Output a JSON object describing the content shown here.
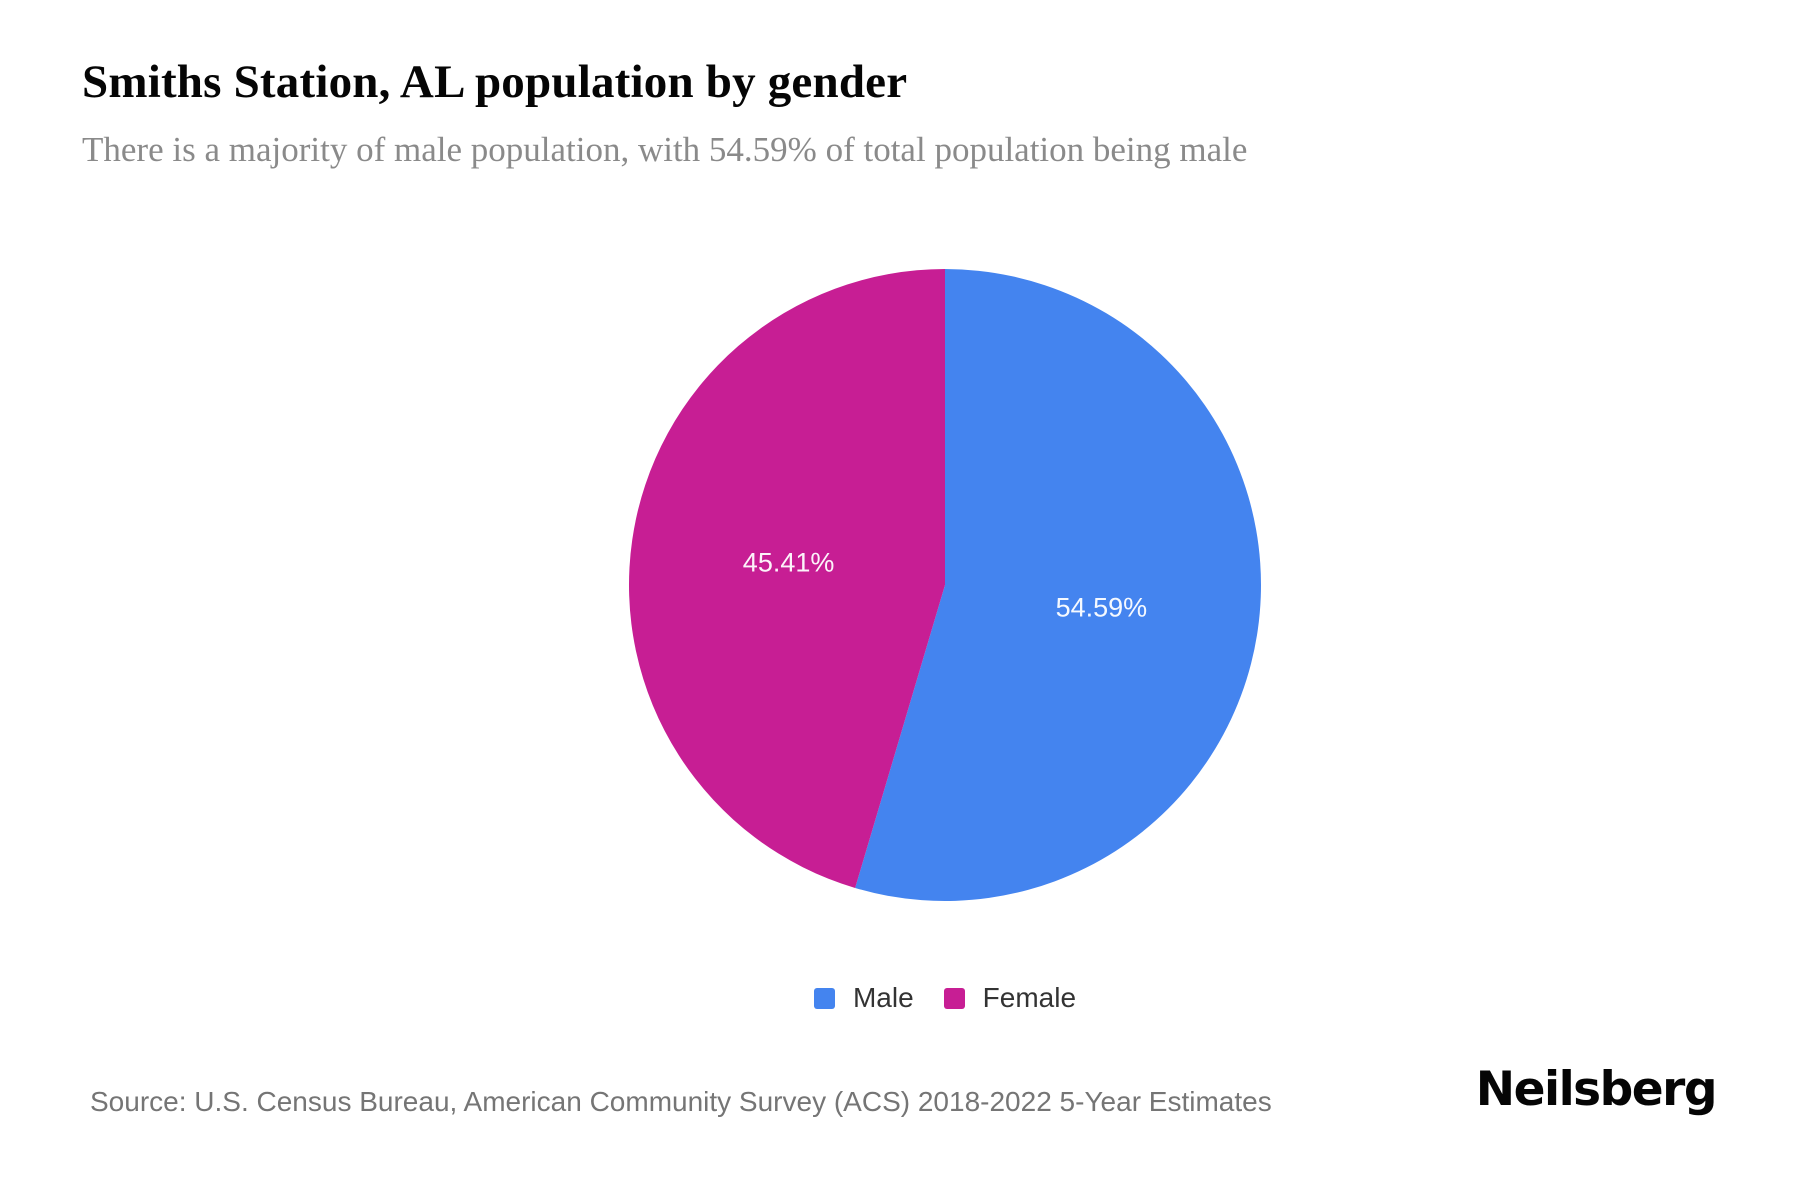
{
  "header": {
    "title": "Smiths Station, AL population by gender",
    "subtitle": "There is a majority of male population, with 54.59% of total population being male"
  },
  "chart_data": {
    "type": "pie",
    "title": "Smiths Station, AL population by gender",
    "subtitle": "There is a majority of male population, with 54.59% of total population being male",
    "slices": [
      {
        "label": "Male",
        "value": 54.59,
        "display": "54.59%",
        "color": "#4484EF"
      },
      {
        "label": "Female",
        "value": 45.41,
        "display": "45.41%",
        "color": "#C71E94"
      }
    ],
    "start_angle_deg": 0,
    "direction": "clockwise",
    "data_label_color": "#FFFFFF",
    "legend_position": "bottom"
  },
  "footer": {
    "source": "Source: U.S. Census Bureau, American Community Survey (ACS) 2018-2022 5-Year Estimates",
    "brand": "Neilsberg"
  }
}
